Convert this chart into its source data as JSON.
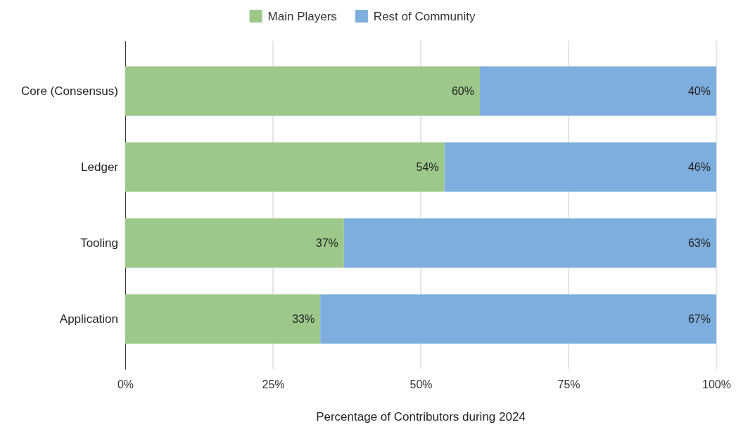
{
  "chart_data": {
    "type": "bar",
    "orientation": "horizontal",
    "stacked": true,
    "categories": [
      "Core (Consensus)",
      "Ledger",
      "Tooling",
      "Application"
    ],
    "series": [
      {
        "name": "Main Players",
        "color": "#9dc88a",
        "values": [
          60,
          54,
          37,
          33
        ],
        "value_labels": [
          "60%",
          "54%",
          "37%",
          "33%"
        ]
      },
      {
        "name": "Rest of Community",
        "color": "#7eaedd",
        "values": [
          40,
          46,
          63,
          67
        ],
        "value_labels": [
          "40%",
          "46%",
          "63%",
          "67%"
        ]
      }
    ],
    "xlim": [
      0,
      100
    ],
    "xticks": [
      {
        "value": 0,
        "label": "0%"
      },
      {
        "value": 25,
        "label": "25%"
      },
      {
        "value": 50,
        "label": "50%"
      },
      {
        "value": 75,
        "label": "75%"
      },
      {
        "value": 100,
        "label": "100%"
      }
    ],
    "xlabel": "Percentage of Contributors during 2024",
    "grid": "x",
    "legend": "top"
  }
}
